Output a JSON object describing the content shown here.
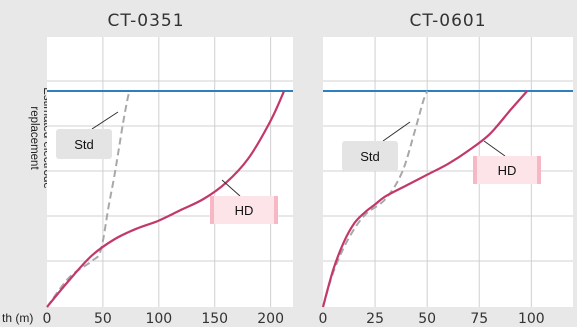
{
  "chart_data": [
    {
      "type": "line",
      "title": "CT-0351",
      "ylabel": "Estimated electrode replacement",
      "xlabel": "th (m)",
      "xlim": [
        0,
        220
      ],
      "x_ticks": [
        0,
        50,
        100,
        150,
        200
      ],
      "ylim": [
        0,
        100
      ],
      "threshold": 80,
      "grid": true,
      "series": [
        {
          "name": "Std",
          "color": "#a8a8a8",
          "dash": true,
          "x": [
            0,
            20,
            40,
            48,
            55,
            60,
            64,
            68,
            72,
            74
          ],
          "y": [
            0,
            11,
            17,
            21,
            37,
            48,
            58,
            68,
            77,
            80
          ]
        },
        {
          "name": "HD",
          "color": "#c2386a",
          "dash": false,
          "x": [
            0,
            20,
            40,
            60,
            80,
            100,
            120,
            140,
            160,
            180,
            200,
            212
          ],
          "y": [
            0,
            10,
            19,
            25,
            29,
            32,
            36,
            40,
            46,
            55,
            69,
            80
          ]
        }
      ]
    },
    {
      "type": "line",
      "title": "CT-0601",
      "xlabel": "",
      "xlim": [
        0,
        120
      ],
      "x_ticks": [
        0,
        25,
        50,
        75,
        100
      ],
      "ylim": [
        0,
        100
      ],
      "threshold": 80,
      "grid": true,
      "series": [
        {
          "name": "Std",
          "color": "#a8a8a8",
          "dash": true,
          "x": [
            0,
            5,
            12,
            20,
            30,
            38,
            44,
            48,
            50
          ],
          "y": [
            0,
            13,
            25,
            34,
            40,
            50,
            65,
            76,
            80
          ]
        },
        {
          "name": "HD",
          "color": "#c2386a",
          "dash": false,
          "x": [
            0,
            5,
            10,
            15,
            20,
            25,
            30,
            40,
            50,
            60,
            70,
            80,
            90,
            98
          ],
          "y": [
            0,
            14,
            24,
            31,
            35,
            38,
            41,
            45,
            49,
            53,
            58,
            64,
            73,
            80
          ]
        }
      ]
    }
  ],
  "colors": {
    "plot_bg": "#ffffff",
    "grid": "#d0d0d0",
    "threshold": "#2d7fc0",
    "std_box": "#e4e4e4",
    "hd_box": "#fde4e8",
    "hd_box_edge": "#f6b8c4"
  }
}
